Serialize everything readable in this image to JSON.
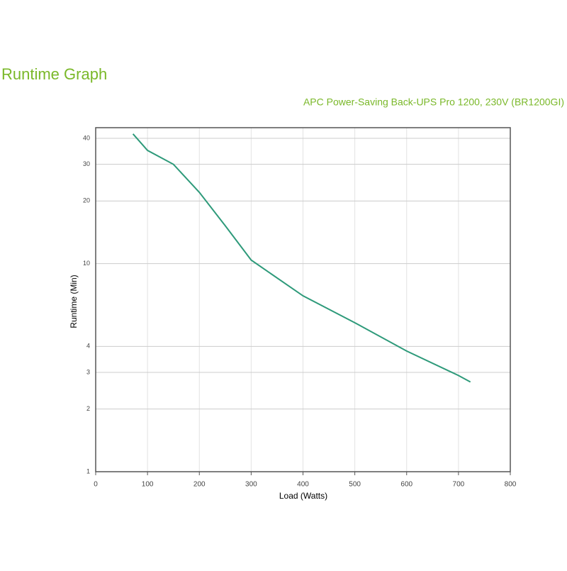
{
  "chart_data": {
    "type": "line",
    "title": "Runtime Graph",
    "subtitle": "APC Power-Saving Back-UPS Pro 1200, 230V (BR1200GI)",
    "x_label": "Load (Watts)",
    "y_label": "Runtime (Min)",
    "x": [
      72,
      100,
      150,
      200,
      250,
      300,
      400,
      500,
      600,
      700,
      723
    ],
    "series": [
      {
        "color": "#2e9a7a",
        "values": [
          42,
          35,
          30,
          22,
          15.2,
          10.4,
          7.0,
          5.2,
          3.8,
          2.9,
          2.7
        ]
      }
    ],
    "xlim": [
      0,
      800
    ],
    "xticks": [
      0,
      100,
      200,
      300,
      400,
      500,
      600,
      700,
      800
    ],
    "ylim": [
      1,
      45
    ],
    "yticks": [
      1,
      2,
      3,
      4,
      10,
      20,
      30,
      40
    ],
    "y_log": true,
    "grid": true
  }
}
